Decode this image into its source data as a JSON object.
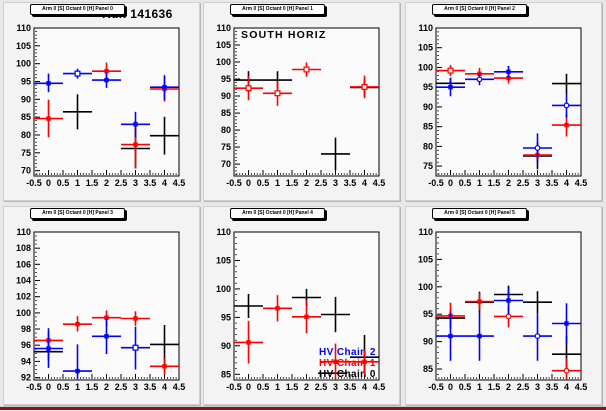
{
  "window": {
    "canvas_bg": "#e8e8e8",
    "pad_bg": "#f3f3f3",
    "frame_bg": "#fbfbfb",
    "bottom_edge_color": "#8c1318"
  },
  "chart_data": {
    "type": "scatter",
    "description": "2x3 grid of error-bar scatter plots (ROOT canvas), gain vs position for three HV chains",
    "legend": [
      {
        "label": "HV Chain 2",
        "color": "#0000ff"
      },
      {
        "label": "HV Chain 1",
        "color": "#ff0000"
      },
      {
        "label": "HV Chain 0",
        "color": "#000000"
      }
    ],
    "x_axis": {
      "min": -0.5,
      "max": 4.5,
      "ticks": [
        -0.5,
        0,
        0.5,
        1,
        1.5,
        2,
        2.5,
        3,
        3.5,
        4,
        4.5
      ],
      "labels": [
        "-0.5",
        "0",
        "0.5",
        "1",
        "1.5",
        "2",
        "2.5",
        "3",
        "3.5",
        "4",
        "4.5"
      ],
      "minor_step": 0.1
    },
    "panels": [
      {
        "tab_title": "Arm 0 [S] Octant 0 [H] Panel 0",
        "title": "Run 141636",
        "ylim": [
          68.5,
          110
        ],
        "yticks": [
          70,
          75,
          80,
          85,
          90,
          95,
          100,
          105,
          110
        ],
        "yminor": 1,
        "series": [
          {
            "name": "HV Chain 0",
            "color": "#000000",
            "points": [
              {
                "x": 1,
                "y": 86.5,
                "lo": 81.6,
                "hi": 91.4,
                "m": "n"
              },
              {
                "x": 3,
                "y": 76.2,
                "lo": 70.6,
                "hi": 81.8,
                "m": "n"
              },
              {
                "x": 4,
                "y": 79.8,
                "lo": 74.5,
                "hi": 85.1,
                "m": "n"
              }
            ]
          },
          {
            "name": "HV Chain 1",
            "color": "#ff0000",
            "points": [
              {
                "x": 0,
                "y": 84.6,
                "lo": 79.4,
                "hi": 89.9,
                "m": "s"
              },
              {
                "x": 2,
                "y": 97.9,
                "lo": 95.5,
                "hi": 100.3,
                "m": "s"
              },
              {
                "x": 3,
                "y": 77.3,
                "lo": 70.6,
                "hi": 83.9,
                "m": "s"
              },
              {
                "x": 4,
                "y": 92.9,
                "lo": 89.4,
                "hi": 96.3,
                "m": "s"
              }
            ]
          },
          {
            "name": "HV Chain 2",
            "color": "#0000ff",
            "points": [
              {
                "x": 0,
                "y": 94.5,
                "lo": 92.0,
                "hi": 97.2,
                "m": "s"
              },
              {
                "x": 1,
                "y": 97.2,
                "lo": 95.8,
                "hi": 98.6,
                "m": "o"
              },
              {
                "x": 2,
                "y": 95.4,
                "lo": 93.2,
                "hi": 97.5,
                "m": "s"
              },
              {
                "x": 3,
                "y": 83.0,
                "lo": 79.4,
                "hi": 86.5,
                "m": "s"
              },
              {
                "x": 4,
                "y": 93.4,
                "lo": 89.8,
                "hi": 96.8,
                "m": "s"
              }
            ]
          }
        ]
      },
      {
        "tab_title": "Arm 0 [S] Octant 0 [H] Panel 1",
        "inner_text": "SOUTH HORIZ",
        "ylim": [
          66.5,
          110
        ],
        "yticks": [
          70,
          75,
          80,
          85,
          90,
          95,
          100,
          105,
          110
        ],
        "yminor": 1,
        "series": [
          {
            "name": "HV Chain 0",
            "color": "#000000",
            "points": [
              {
                "x": 0,
                "y": 94.7,
                "lo": 92.2,
                "hi": 97.3,
                "m": "n"
              },
              {
                "x": 1,
                "y": 94.7,
                "lo": 92.2,
                "hi": 97.3,
                "m": "n"
              },
              {
                "x": 3,
                "y": 73.0,
                "lo": 68.2,
                "hi": 77.8,
                "m": "n"
              },
              {
                "x": 4,
                "y": 92.5,
                "lo": 90.2,
                "hi": 94.9,
                "m": "n"
              }
            ]
          },
          {
            "name": "HV Chain 1",
            "color": "#ff0000",
            "points": [
              {
                "x": 0,
                "y": 92.3,
                "lo": 88.8,
                "hi": 95.9,
                "m": "o"
              },
              {
                "x": 1,
                "y": 90.8,
                "lo": 87.1,
                "hi": 94.5,
                "m": "o"
              },
              {
                "x": 2,
                "y": 97.8,
                "lo": 95.7,
                "hi": 99.9,
                "m": "o"
              },
              {
                "x": 4,
                "y": 92.7,
                "lo": 89.4,
                "hi": 96.0,
                "m": "o"
              }
            ]
          },
          {
            "name": "HV Chain 2",
            "color": "#0000ff",
            "points": []
          }
        ]
      },
      {
        "tab_title": "Arm 0 [S] Octant 0 [H] Panel 2",
        "ylim": [
          72.5,
          110
        ],
        "yticks": [
          75,
          80,
          85,
          90,
          95,
          100,
          105,
          110
        ],
        "yminor": 1,
        "series": [
          {
            "name": "HV Chain 0",
            "color": "#000000",
            "points": [
              {
                "x": 0,
                "y": 96.0,
                "lo": 94.6,
                "hi": 97.4,
                "m": "n"
              },
              {
                "x": 3,
                "y": 77.6,
                "lo": 74.2,
                "hi": 81.0,
                "m": "n"
              },
              {
                "x": 4,
                "y": 95.9,
                "lo": 93.4,
                "hi": 98.4,
                "m": "n"
              }
            ]
          },
          {
            "name": "HV Chain 1",
            "color": "#ff0000",
            "points": [
              {
                "x": 0,
                "y": 99.2,
                "lo": 97.8,
                "hi": 100.6,
                "m": "o"
              },
              {
                "x": 1,
                "y": 98.4,
                "lo": 96.9,
                "hi": 99.9,
                "m": "s"
              },
              {
                "x": 2,
                "y": 97.3,
                "lo": 95.9,
                "hi": 98.7,
                "m": "s"
              },
              {
                "x": 3,
                "y": 77.8,
                "lo": 76.4,
                "hi": 79.2,
                "m": "s"
              },
              {
                "x": 4,
                "y": 85.4,
                "lo": 82.5,
                "hi": 88.3,
                "m": "s"
              }
            ]
          },
          {
            "name": "HV Chain 2",
            "color": "#0000ff",
            "points": [
              {
                "x": 0,
                "y": 95.0,
                "lo": 92.7,
                "hi": 97.3,
                "m": "s"
              },
              {
                "x": 1,
                "y": 97.0,
                "lo": 95.5,
                "hi": 98.5,
                "m": "c"
              },
              {
                "x": 2,
                "y": 98.9,
                "lo": 97.4,
                "hi": 100.4,
                "m": "s"
              },
              {
                "x": 3,
                "y": 79.6,
                "lo": 75.9,
                "hi": 83.3,
                "m": "c"
              },
              {
                "x": 4,
                "y": 90.4,
                "lo": 87.3,
                "hi": 93.5,
                "m": "c"
              }
            ]
          }
        ]
      },
      {
        "tab_title": "Arm 0 [S] Octant 0 [H] Panel 3",
        "ylim": [
          91.7,
          110
        ],
        "yticks": [
          92,
          94,
          96,
          98,
          100,
          102,
          104,
          106,
          108,
          110
        ],
        "yminor": 0.5,
        "series": [
          {
            "name": "HV Chain 0",
            "color": "#000000",
            "points": [
              {
                "x": 0,
                "y": 95.2,
                "lo": 94.1,
                "hi": 96.3,
                "m": "n"
              },
              {
                "x": 4,
                "y": 96.1,
                "lo": 93.7,
                "hi": 98.5,
                "m": "n"
              }
            ]
          },
          {
            "name": "HV Chain 1",
            "color": "#ff0000",
            "points": [
              {
                "x": 0,
                "y": 96.6,
                "lo": 95.5,
                "hi": 97.7,
                "m": "s"
              },
              {
                "x": 1,
                "y": 98.6,
                "lo": 97.7,
                "hi": 99.6,
                "m": "s"
              },
              {
                "x": 2,
                "y": 99.4,
                "lo": 98.4,
                "hi": 100.3,
                "m": "s"
              },
              {
                "x": 3,
                "y": 99.3,
                "lo": 98.4,
                "hi": 100.2,
                "m": "s"
              },
              {
                "x": 4,
                "y": 93.4,
                "lo": 92.4,
                "hi": 94.4,
                "m": "s"
              }
            ]
          },
          {
            "name": "HV Chain 2",
            "color": "#0000ff",
            "points": [
              {
                "x": 0,
                "y": 95.6,
                "lo": 93.2,
                "hi": 98.1,
                "m": "s"
              },
              {
                "x": 1,
                "y": 92.8,
                "lo": 91.8,
                "hi": 96.1,
                "m": "s"
              },
              {
                "x": 2,
                "y": 97.1,
                "lo": 94.9,
                "hi": 99.3,
                "m": "s"
              },
              {
                "x": 3,
                "y": 95.7,
                "lo": 93.0,
                "hi": 98.3,
                "m": "o"
              }
            ]
          }
        ]
      },
      {
        "tab_title": "Arm 0 [S] Octant 0 [H] Panel 4",
        "has_legend": true,
        "ylim": [
          84.0,
          110
        ],
        "yticks": [
          85,
          90,
          95,
          100,
          105,
          110
        ],
        "yminor": 1,
        "series": [
          {
            "name": "HV Chain 0",
            "color": "#000000",
            "points": [
              {
                "x": 0,
                "y": 97.0,
                "lo": 94.9,
                "hi": 99.1,
                "m": "n"
              },
              {
                "x": 2,
                "y": 98.5,
                "lo": 97.0,
                "hi": 100.0,
                "m": "n"
              },
              {
                "x": 3,
                "y": 95.5,
                "lo": 92.4,
                "hi": 98.6,
                "m": "n"
              },
              {
                "x": 2.9,
                "y": 85.2,
                "lo": 85.2,
                "hi": 85.2,
                "m": "n"
              },
              {
                "x": 4,
                "y": 88.0,
                "lo": 85.3,
                "hi": 91.9,
                "m": "n"
              }
            ]
          },
          {
            "name": "HV Chain 1",
            "color": "#ff0000",
            "points": [
              {
                "x": 0,
                "y": 90.6,
                "lo": 86.9,
                "hi": 94.4,
                "m": "s"
              },
              {
                "x": 1,
                "y": 96.6,
                "lo": 94.3,
                "hi": 98.9,
                "m": "s"
              },
              {
                "x": 2,
                "y": 95.1,
                "lo": 92.2,
                "hi": 98.0,
                "m": "s"
              },
              {
                "x": 3,
                "y": 87.2,
                "lo": 84.0,
                "hi": 90.4,
                "m": "s"
              },
              {
                "x": 4,
                "y": 87.2,
                "lo": 84.9,
                "hi": 89.4,
                "m": "s"
              }
            ]
          },
          {
            "name": "HV Chain 2",
            "color": "#0000ff",
            "points": []
          }
        ]
      },
      {
        "tab_title": "Arm 0 [S] Octant 0 [H] Panel 5",
        "ylim": [
          83.0,
          110
        ],
        "yticks": [
          85,
          90,
          95,
          100,
          105,
          110
        ],
        "yminor": 1,
        "series": [
          {
            "name": "HV Chain 0",
            "color": "#000000",
            "points": [
              {
                "x": 0,
                "y": 94.3,
                "lo": 92.8,
                "hi": 95.8,
                "m": "n"
              },
              {
                "x": 1,
                "y": 97.2,
                "lo": 95.3,
                "hi": 99.1,
                "m": "n"
              },
              {
                "x": 2,
                "y": 98.6,
                "lo": 97.0,
                "hi": 100.2,
                "m": "n"
              },
              {
                "x": 3,
                "y": 97.2,
                "lo": 95.2,
                "hi": 99.2,
                "m": "n"
              },
              {
                "x": 4,
                "y": 87.7,
                "lo": 84.6,
                "hi": 91.0,
                "m": "n"
              }
            ]
          },
          {
            "name": "HV Chain 1",
            "color": "#ff0000",
            "points": [
              {
                "x": 0,
                "y": 94.7,
                "lo": 92.4,
                "hi": 97.1,
                "m": "s"
              },
              {
                "x": 1,
                "y": 97.3,
                "lo": 95.7,
                "hi": 98.9,
                "m": "s"
              },
              {
                "x": 2,
                "y": 94.6,
                "lo": 92.6,
                "hi": 96.6,
                "m": "c"
              },
              {
                "x": 4,
                "y": 84.7,
                "lo": 82.6,
                "hi": 86.9,
                "m": "c"
              }
            ]
          },
          {
            "name": "HV Chain 2",
            "color": "#0000ff",
            "points": [
              {
                "x": 0,
                "y": 91.0,
                "lo": 86.5,
                "hi": 95.3,
                "m": "s"
              },
              {
                "x": 1,
                "y": 91.0,
                "lo": 86.5,
                "hi": 95.5,
                "m": "s"
              },
              {
                "x": 2,
                "y": 97.5,
                "lo": 95.0,
                "hi": 100.0,
                "m": "s"
              },
              {
                "x": 3,
                "y": 91.0,
                "lo": 86.5,
                "hi": 95.2,
                "m": "c"
              },
              {
                "x": 4,
                "y": 93.3,
                "lo": 89.6,
                "hi": 97.0,
                "m": "s"
              }
            ]
          }
        ]
      }
    ]
  }
}
